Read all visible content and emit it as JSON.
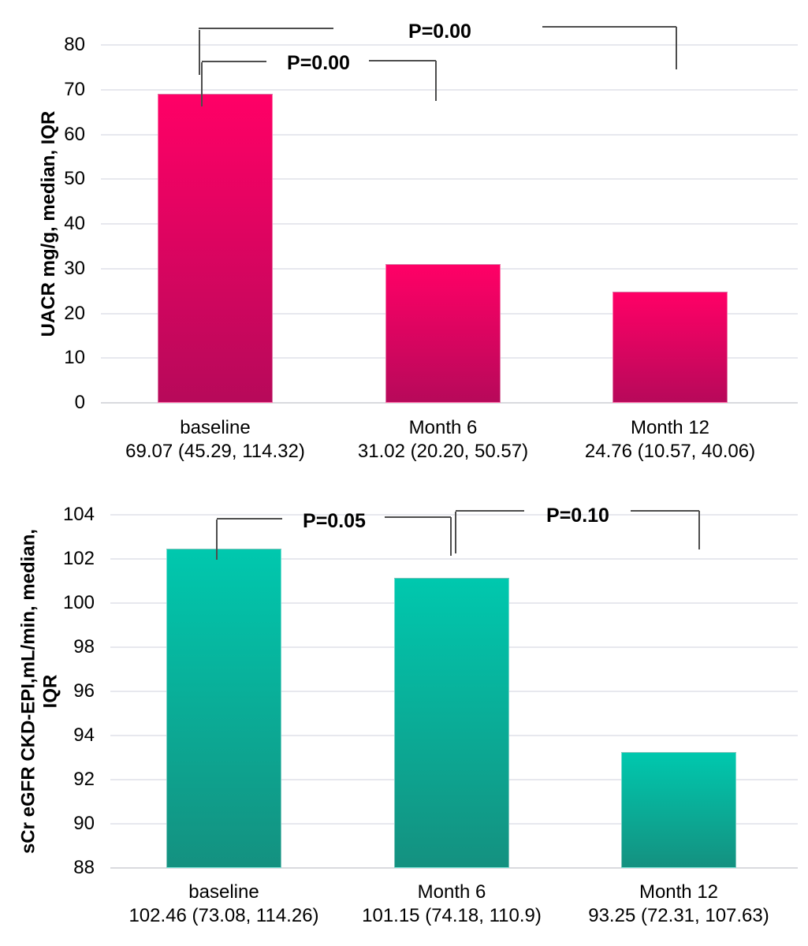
{
  "page": {
    "background": "#ffffff",
    "grid_color": "#e7e8ee",
    "bracket_color": "#4d4d4d"
  },
  "chart_data": [
    {
      "type": "bar",
      "ylabel": "UACR mg/g, median, IQR",
      "categories": [
        "baseline",
        "Month 6",
        "Month 12"
      ],
      "values": [
        69.07,
        31.02,
        24.76
      ],
      "value_labels": [
        "69.07（45.29，114.32）",
        "31.02（20.20，50.57）",
        "24.76（10.57，40.06）"
      ],
      "ylim": [
        0,
        80
      ],
      "ytick_step": 10,
      "yticks": [
        0,
        10,
        20,
        30,
        40,
        50,
        60,
        70,
        80
      ],
      "grid": true,
      "legend": "none",
      "bar_color_top": "#ff0066",
      "bar_color_bottom": "#b7095a",
      "annotations": [
        {
          "label": "P=0.00",
          "between": [
            "baseline",
            "Month 6"
          ]
        },
        {
          "label": "P=0.00",
          "between": [
            "baseline",
            "Month 12"
          ]
        }
      ]
    },
    {
      "type": "bar",
      "ylabel": "sCr eGFR CKD-EPI,mL/min, median,\nIQR",
      "categories": [
        "baseline",
        "Month 6",
        "Month 12"
      ],
      "values": [
        102.46,
        101.15,
        93.25
      ],
      "value_labels": [
        "102.46（73.08，114.26）",
        "101.15（74.18，110.9）",
        "93.25（72.31，107.63）"
      ],
      "ylim": [
        88,
        104
      ],
      "ytick_step": 2,
      "yticks": [
        88,
        90,
        92,
        94,
        96,
        98,
        100,
        102,
        104
      ],
      "grid": true,
      "legend": "none",
      "bar_color_top": "#00c8ae",
      "bar_color_bottom": "#149180",
      "annotations": [
        {
          "label": "P=0.05",
          "between": [
            "baseline",
            "Month 6"
          ]
        },
        {
          "label": "P=0.10",
          "between": [
            "Month 6",
            "Month 12"
          ]
        }
      ]
    }
  ]
}
